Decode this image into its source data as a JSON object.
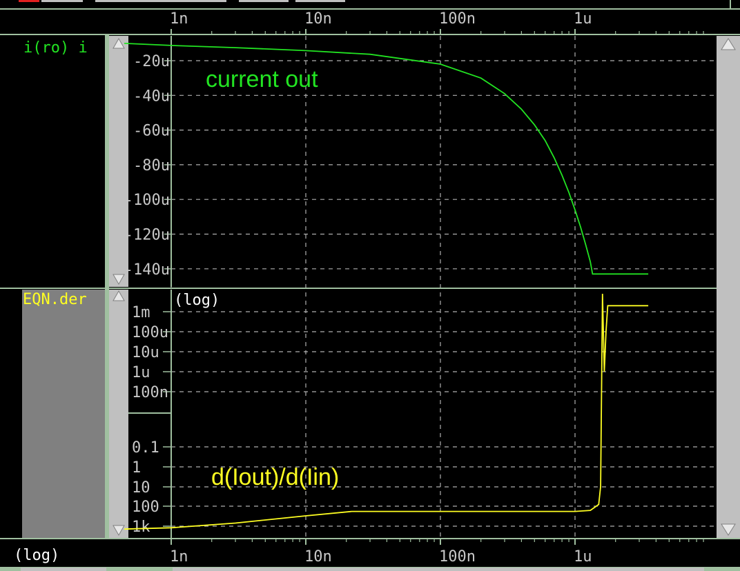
{
  "x_axis": {
    "scale": "log",
    "unit": "s",
    "decades": [
      {
        "value": 1e-09,
        "label": "1n"
      },
      {
        "value": 1e-08,
        "label": "10n"
      },
      {
        "value": 1e-07,
        "label": "100n"
      },
      {
        "value": 1e-06,
        "label": "1u"
      }
    ],
    "mode_label": "(log)"
  },
  "top_panel": {
    "signal_name": "i(ro) i",
    "annotation": "current out",
    "trace_color": "#22e422",
    "y_ticks": [
      "-20u",
      "-40u",
      "-60u",
      "-80u",
      "-100u",
      "-120u",
      "-140u"
    ]
  },
  "bottom_panel": {
    "signal_name": "EQN.der",
    "mode_label": "(log)",
    "annotation": "d(Iout)/d(Iin)",
    "trace_color": "#ffff22",
    "y_ticks_upper": [
      "1m",
      "100u",
      "10u",
      "1u",
      "100n"
    ],
    "y_ticks_lower": [
      "0.1",
      "1",
      "10",
      "100",
      "1k"
    ]
  },
  "colors": {
    "frame": "#a0c0a0",
    "scroll_track": "#c0c0c0",
    "label_pane": "#808080",
    "grid": "#b0b0b0",
    "axis_text": "#c8c8c8"
  },
  "chart_data": [
    {
      "type": "line",
      "title": "",
      "legend_label": "i(ro) i",
      "annotation": "current out",
      "xscale": "log",
      "xlim": [
        4e-10,
        3.5e-06
      ],
      "ylim": [
        -0.00015,
        -5e-06
      ],
      "y_ticks": [
        -2e-05,
        -4e-05,
        -6e-05,
        -8e-05,
        -0.0001,
        -0.00012,
        -0.00014
      ],
      "series": [
        {
          "name": "i(ro) i",
          "x": [
            4e-10,
            1e-09,
            3e-09,
            1e-08,
            3e-08,
            1e-07,
            2e-07,
            3e-07,
            4e-07,
            5e-07,
            6e-07,
            7e-07,
            8e-07,
            9e-07,
            1e-06,
            1.1e-06,
            1.2e-06,
            1.3e-06,
            1.35e-06,
            2e-06,
            3e-06,
            3.5e-06
          ],
          "y": [
            -1e-05,
            -1.12e-05,
            -1.25e-05,
            -1.42e-05,
            -1.63e-05,
            -2.2e-05,
            -3e-05,
            -3.9e-05,
            -4.8e-05,
            -5.7e-05,
            -6.6e-05,
            -7.6e-05,
            -8.6e-05,
            -9.6e-05,
            -0.000106,
            -0.000116,
            -0.000126,
            -0.000136,
            -0.000143,
            -0.000143,
            -0.000143,
            -0.000143
          ]
        }
      ]
    },
    {
      "type": "line",
      "title": "",
      "legend_label": "EQN.der",
      "annotation": "d(Iout)/d(Iin)",
      "xscale": "log",
      "yscale": "log",
      "xlim": [
        4e-10,
        3.5e-06
      ],
      "y_ticks": [
        "1m",
        "100u",
        "10u",
        "1u",
        "100n",
        "0.1",
        "1",
        "10",
        "100",
        "1k"
      ],
      "series": [
        {
          "name": "EQN.der",
          "x": [
            4e-10,
            1e-09,
            3e-09,
            1e-08,
            2.2e-08,
            1e-07,
            1e-06,
            1.3e-06,
            1.5e-06,
            1.55e-06,
            1.6e-06,
            1.65e-06,
            1.7e-06,
            1.75e-06,
            2e-06,
            3e-06,
            3.5e-06
          ],
          "y": [
            1400,
            1200,
            700,
            300,
            180,
            180,
            180,
            160,
            80,
            10,
            0.05,
            1e-06,
            0.0001,
            0.002,
            0.002,
            0.002,
            0.002
          ]
        }
      ]
    }
  ]
}
